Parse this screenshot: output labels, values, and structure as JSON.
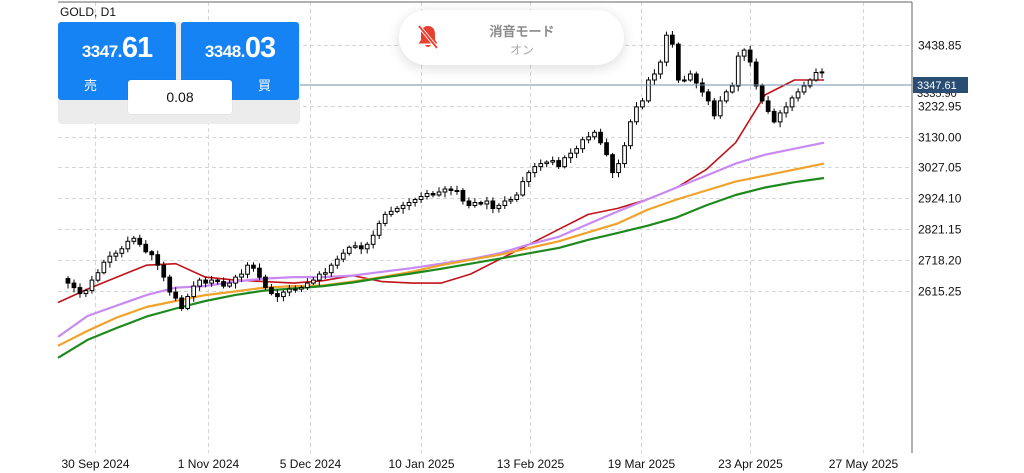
{
  "symbol_label": "GOLD, D1",
  "quote": {
    "sell_price_small": "3347.",
    "sell_price_big": "61",
    "sell_label": "売",
    "buy_price_small": "3348.",
    "buy_price_big": "03",
    "buy_label": "買",
    "spread": "0.08"
  },
  "toast": {
    "title": "消音モード",
    "status": "オン",
    "icon": "bell-muted-icon"
  },
  "colors": {
    "up_candle": "#ffffff",
    "down_candle": "#000000",
    "grid": "#d6d6d6",
    "ma_fast": "#c0131a",
    "ma_mid": "#c889f2",
    "ma_slow": "#f0a22a",
    "ma_long": "#1e8a1e",
    "bid_line": "#6f8fae",
    "price_label_bg": "#2a4d73",
    "buttons": "#1683f5"
  },
  "chart_data": {
    "type": "candlestick",
    "symbol": "GOLD",
    "timeframe": "D1",
    "ylim": [
      2520,
      3500
    ],
    "y_ticks": [
      "3438.85",
      "3232.95",
      "3130.00",
      "3027.05",
      "2924.10",
      "2821.15",
      "2718.20",
      "2615.25"
    ],
    "x_ticks": [
      "30 Sep 2024",
      "1 Nov 2024",
      "5 Dec 2024",
      "10 Jan 2025",
      "13 Feb 2025",
      "19 Mar 2025",
      "23 Apr 2025",
      "27 May 2025"
    ],
    "current_price": "3347.61",
    "hidden_label": "3335.90",
    "grid": true,
    "moving_averages": [
      {
        "color": "#c0131a",
        "values": [
          2575,
          2620,
          2660,
          2700,
          2705,
          2660,
          2650,
          2645,
          2640,
          2648,
          2665,
          2645,
          2640,
          2640,
          2670,
          2720,
          2770,
          2820,
          2870,
          2890,
          2920,
          2960,
          3020,
          3110,
          3270,
          3320,
          3320
        ]
      },
      {
        "color": "#c889f2",
        "values": [
          2460,
          2530,
          2565,
          2600,
          2625,
          2630,
          2645,
          2655,
          2660,
          2660,
          2665,
          2678,
          2690,
          2705,
          2720,
          2740,
          2770,
          2795,
          2838,
          2880,
          2920,
          2960,
          3000,
          3040,
          3070,
          3090,
          3110
        ]
      },
      {
        "color": "#f0a22a",
        "values": [
          2430,
          2480,
          2525,
          2560,
          2580,
          2600,
          2612,
          2625,
          2630,
          2632,
          2645,
          2660,
          2678,
          2700,
          2718,
          2735,
          2758,
          2780,
          2810,
          2840,
          2885,
          2920,
          2950,
          2980,
          3000,
          3020,
          3040
        ]
      },
      {
        "color": "#1e8a1e",
        "values": [
          2390,
          2450,
          2490,
          2528,
          2555,
          2580,
          2600,
          2615,
          2622,
          2630,
          2642,
          2658,
          2672,
          2688,
          2705,
          2722,
          2740,
          2758,
          2785,
          2808,
          2832,
          2860,
          2900,
          2935,
          2960,
          2978,
          2992
        ]
      }
    ],
    "candle_path": [
      2655,
      2640,
      2625,
      2605,
      2615,
      2650,
      2675,
      2710,
      2730,
      2740,
      2755,
      2780,
      2790,
      2770,
      2745,
      2735,
      2700,
      2660,
      2610,
      2590,
      2555,
      2595,
      2630,
      2650,
      2640,
      2650,
      2645,
      2630,
      2640,
      2660,
      2670,
      2700,
      2690,
      2660,
      2625,
      2605,
      2595,
      2610,
      2620,
      2620,
      2625,
      2640,
      2650,
      2670,
      2675,
      2700,
      2720,
      2740,
      2760,
      2765,
      2755,
      2770,
      2800,
      2840,
      2870,
      2880,
      2890,
      2900,
      2910,
      2920,
      2930,
      2940,
      2935,
      2945,
      2955,
      2950,
      2950,
      2915,
      2900,
      2910,
      2905,
      2915,
      2890,
      2900,
      2915,
      2920,
      2935,
      2980,
      3010,
      3030,
      3040,
      3045,
      3050,
      3030,
      3060,
      3075,
      3090,
      3120,
      3130,
      3145,
      3110,
      3070,
      3010,
      3040,
      3100,
      3180,
      3230,
      3250,
      3320,
      3340,
      3380,
      3470,
      3440,
      3320,
      3320,
      3340,
      3310,
      3280,
      3250,
      3200,
      3250,
      3280,
      3300,
      3400,
      3420,
      3380,
      3300,
      3250,
      3215,
      3180,
      3210,
      3230,
      3260,
      3280,
      3300,
      3320,
      3345,
      3347
    ]
  }
}
